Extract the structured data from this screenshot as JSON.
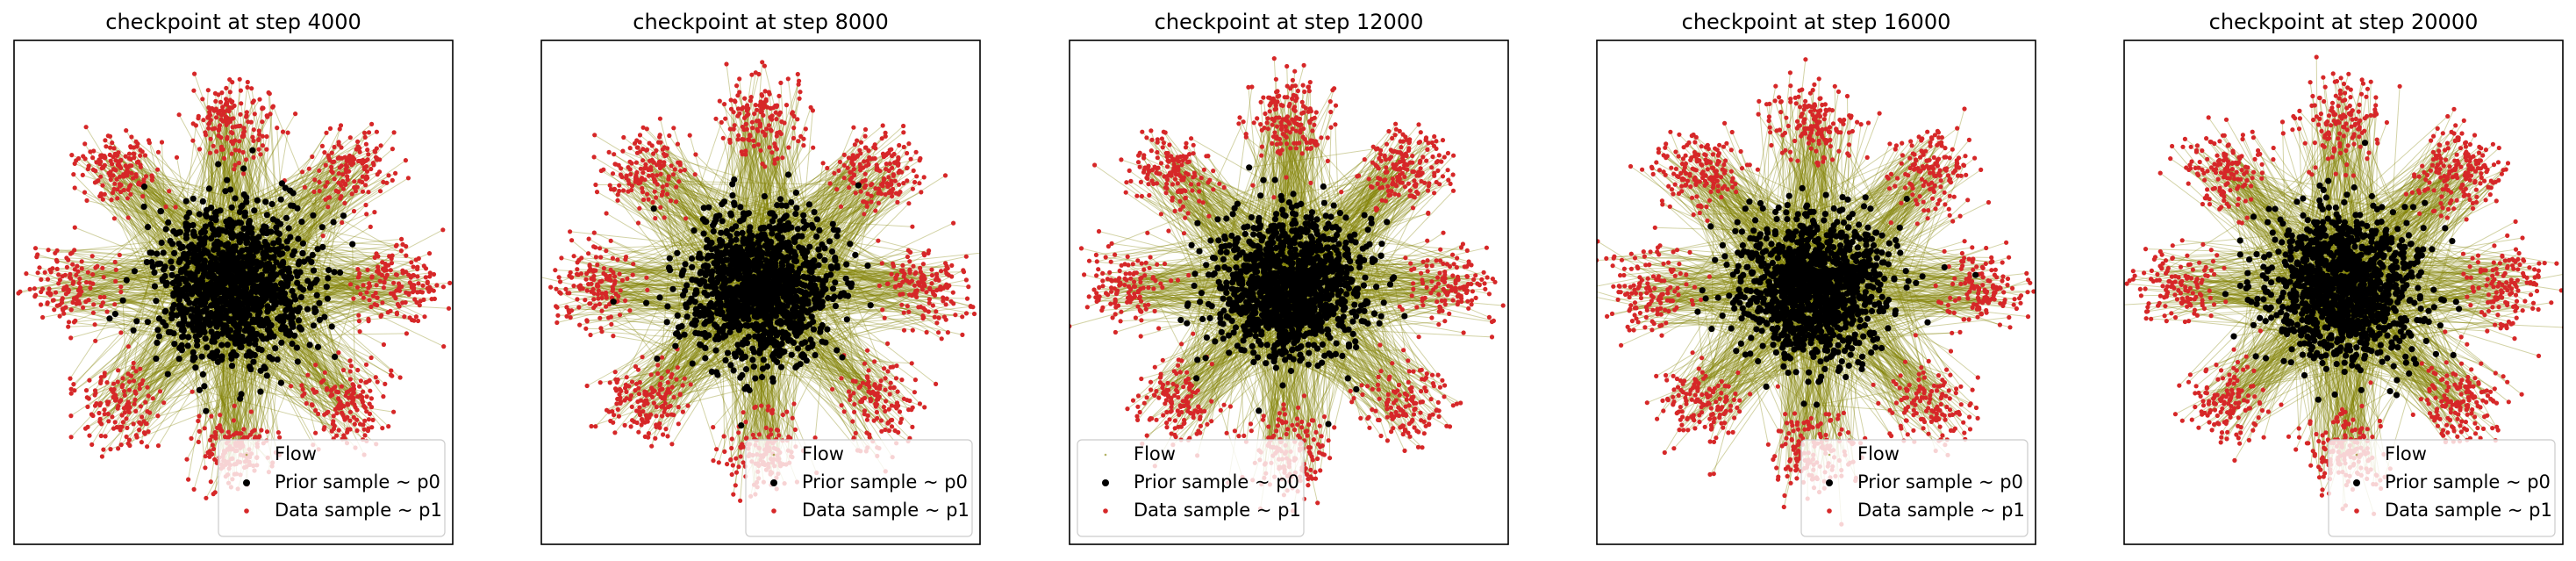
{
  "colors": {
    "flow": "#808000",
    "prior": "#000000",
    "data": "#d62728",
    "frame": "#000000",
    "legend_bg": "#ffffff",
    "legend_border": "#cccccc"
  },
  "legend": {
    "placement": "lower right",
    "entries": [
      "Flow",
      "Prior sample ~ p0",
      "Data sample ~ p1"
    ]
  },
  "chart_data": [
    {
      "type": "scatter",
      "title": "checkpoint at step 4000",
      "legend_placement": "lower right",
      "grid": false,
      "xticks": false,
      "yticks": false,
      "series": [
        {
          "name": "Flow"
        },
        {
          "name": "Prior sample ~ p0"
        },
        {
          "name": "Data sample ~ p1"
        }
      ],
      "prior": {
        "distribution": "standard gaussian",
        "center": [
          0,
          0
        ]
      },
      "data": {
        "distribution": "8 gaussian clusters on a ring",
        "clusters": 8
      }
    },
    {
      "type": "scatter",
      "title": "checkpoint at step 8000",
      "legend_placement": "lower right",
      "grid": false,
      "xticks": false,
      "yticks": false,
      "series": [
        {
          "name": "Flow"
        },
        {
          "name": "Prior sample ~ p0"
        },
        {
          "name": "Data sample ~ p1"
        }
      ],
      "prior": {
        "distribution": "standard gaussian",
        "center": [
          0,
          0
        ]
      },
      "data": {
        "distribution": "8 gaussian clusters on a ring",
        "clusters": 8
      }
    },
    {
      "type": "scatter",
      "title": "checkpoint at step 12000",
      "legend_placement": "lower left",
      "grid": false,
      "xticks": false,
      "yticks": false,
      "series": [
        {
          "name": "Flow"
        },
        {
          "name": "Prior sample ~ p0"
        },
        {
          "name": "Data sample ~ p1"
        }
      ],
      "prior": {
        "distribution": "standard gaussian",
        "center": [
          0,
          0
        ]
      },
      "data": {
        "distribution": "8 gaussian clusters on a ring",
        "clusters": 8
      }
    },
    {
      "type": "scatter",
      "title": "checkpoint at step 16000",
      "legend_placement": "lower right",
      "grid": false,
      "xticks": false,
      "yticks": false,
      "series": [
        {
          "name": "Flow"
        },
        {
          "name": "Prior sample ~ p0"
        },
        {
          "name": "Data sample ~ p1"
        }
      ],
      "prior": {
        "distribution": "standard gaussian",
        "center": [
          0,
          0
        ]
      },
      "data": {
        "distribution": "8 gaussian clusters on a ring",
        "clusters": 8
      }
    },
    {
      "type": "scatter",
      "title": "checkpoint at step 20000",
      "legend_placement": "lower right",
      "grid": false,
      "xticks": false,
      "yticks": false,
      "series": [
        {
          "name": "Flow"
        },
        {
          "name": "Prior sample ~ p0"
        },
        {
          "name": "Data sample ~ p1"
        }
      ],
      "prior": {
        "distribution": "standard gaussian",
        "center": [
          0,
          0
        ]
      },
      "data": {
        "distribution": "8 gaussian clusters on a ring",
        "clusters": 8
      }
    }
  ]
}
